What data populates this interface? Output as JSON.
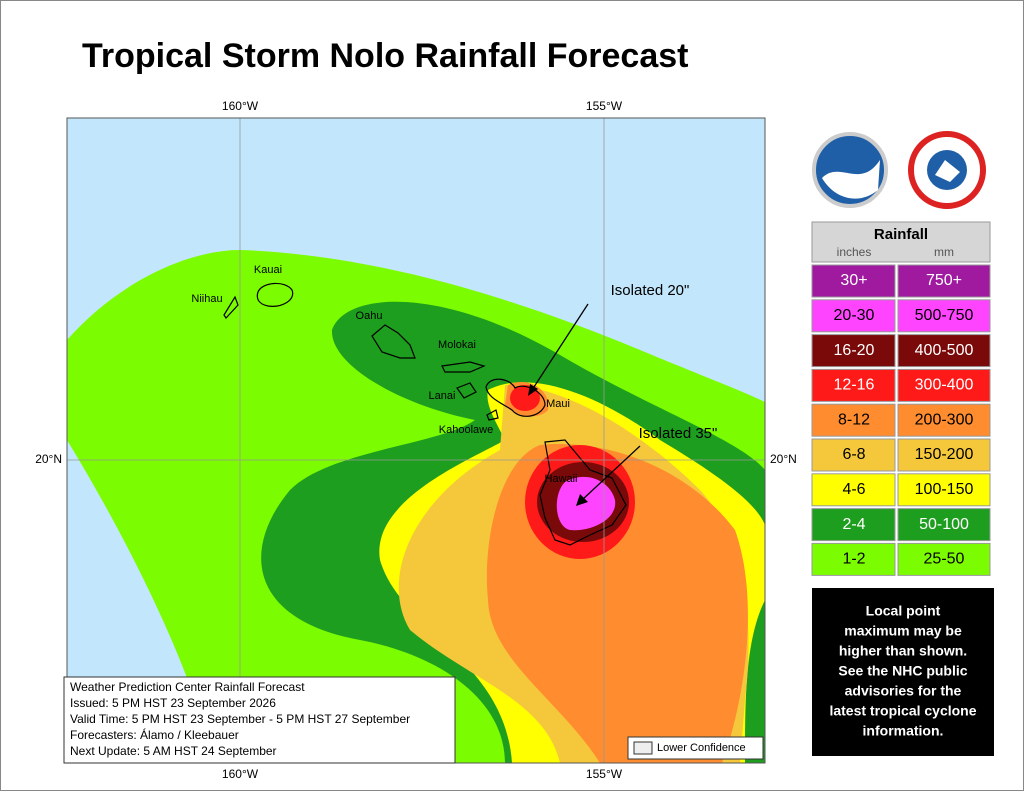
{
  "title": "Tropical Storm Nolo Rainfall Forecast",
  "map": {
    "lon_labels": [
      "160°W",
      "155°W"
    ],
    "lat_labels": [
      "20°N"
    ],
    "islands": [
      "Kauai",
      "Niihau",
      "Oahu",
      "Molokai",
      "Lanai",
      "Maui",
      "Kahoolawe",
      "Hawaii"
    ],
    "annotations": [
      "Isolated 20\"",
      "Isolated 35\""
    ]
  },
  "legend": {
    "title": "Rainfall",
    "units": [
      "inches",
      "mm"
    ],
    "rows": [
      {
        "inches": "30+",
        "mm": "750+",
        "color": "#a01aa0"
      },
      {
        "inches": "20-30",
        "mm": "500-750",
        "color": "#ff44ff"
      },
      {
        "inches": "16-20",
        "mm": "400-500",
        "color": "#7a0a0a"
      },
      {
        "inches": "12-16",
        "mm": "300-400",
        "color": "#ff1a1a"
      },
      {
        "inches": "8-12",
        "mm": "200-300",
        "color": "#ff8c2e"
      },
      {
        "inches": "6-8",
        "mm": "150-200",
        "color": "#f5c83c"
      },
      {
        "inches": "4-6",
        "mm": "100-150",
        "color": "#ffff00"
      },
      {
        "inches": "2-4",
        "mm": "50-100",
        "color": "#1e9e1e"
      },
      {
        "inches": "1-2",
        "mm": "25-50",
        "color": "#7cfc00"
      }
    ]
  },
  "note": [
    "Local point",
    "maximum may be",
    "higher than shown.",
    "See the NHC public",
    "advisories for the",
    "latest tropical cyclone",
    "information."
  ],
  "info": [
    "Weather Prediction Center Rainfall Forecast",
    "Issued: 5 PM HST 23 September 2026",
    "Valid Time: 5 PM HST 23 September - 5 PM HST 27 September",
    "Forecasters: Álamo / Kleebauer",
    "Next Update: 5 AM HST 24 September"
  ],
  "lower_confidence": "Lower Confidence"
}
